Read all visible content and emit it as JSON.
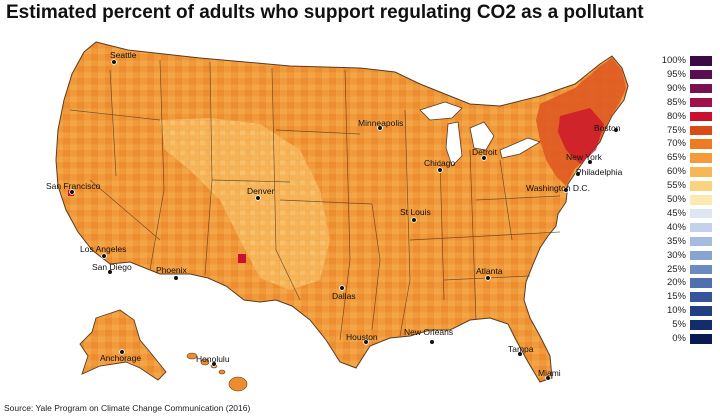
{
  "title": "Estimated  percent of adults who support regulating CO2 as a pollutant",
  "source": "Source: Yale Program on Climate Change Communication (2016)",
  "legend": {
    "items": [
      {
        "label": "100%",
        "color": "#3b0a45"
      },
      {
        "label": "95%",
        "color": "#5a0d4f"
      },
      {
        "label": "90%",
        "color": "#7a1050"
      },
      {
        "label": "85%",
        "color": "#a0104a"
      },
      {
        "label": "80%",
        "color": "#c9102e"
      },
      {
        "label": "75%",
        "color": "#dd4a1a"
      },
      {
        "label": "70%",
        "color": "#ee7a22"
      },
      {
        "label": "65%",
        "color": "#f59a3a"
      },
      {
        "label": "60%",
        "color": "#f8b757"
      },
      {
        "label": "55%",
        "color": "#fbd27e"
      },
      {
        "label": "50%",
        "color": "#fdeab0"
      },
      {
        "label": "45%",
        "color": "#dde6f2"
      },
      {
        "label": "40%",
        "color": "#c3d2ea"
      },
      {
        "label": "35%",
        "color": "#a5bce0"
      },
      {
        "label": "30%",
        "color": "#88a4d2"
      },
      {
        "label": "25%",
        "color": "#6a8ac2"
      },
      {
        "label": "20%",
        "color": "#4e6fb0"
      },
      {
        "label": "15%",
        "color": "#36559c"
      },
      {
        "label": "10%",
        "color": "#223f84"
      },
      {
        "label": "5%",
        "color": "#132c6b"
      },
      {
        "label": "0%",
        "color": "#0a1b4f"
      }
    ]
  },
  "cities": [
    {
      "name": "Seattle"
    },
    {
      "name": "San Francisco"
    },
    {
      "name": "Los Angeles"
    },
    {
      "name": "San Diego"
    },
    {
      "name": "Phoenix"
    },
    {
      "name": "Denver"
    },
    {
      "name": "Dallas"
    },
    {
      "name": "Houston"
    },
    {
      "name": "Minneapolis"
    },
    {
      "name": "Chicago"
    },
    {
      "name": "Detroit"
    },
    {
      "name": "St Louis"
    },
    {
      "name": "Atlanta"
    },
    {
      "name": "New Orleans"
    },
    {
      "name": "Tampa"
    },
    {
      "name": "Miami"
    },
    {
      "name": "Washington D.C."
    },
    {
      "name": "Philadelphia"
    },
    {
      "name": "New York"
    },
    {
      "name": "Boston"
    },
    {
      "name": "Anchorage"
    },
    {
      "name": "Honolulu"
    }
  ]
}
